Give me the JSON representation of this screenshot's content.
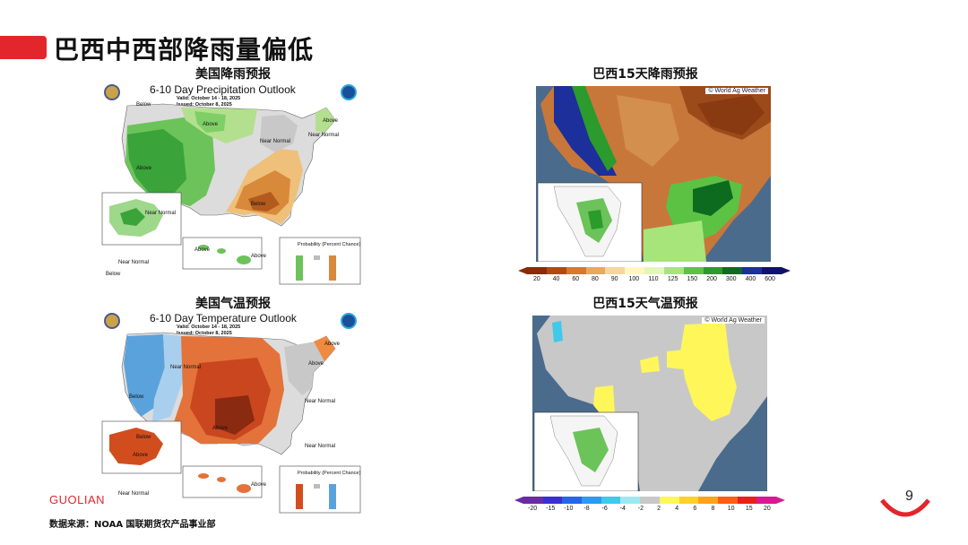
{
  "page": {
    "title": "巴西中西部降雨量偏低",
    "brand": "GUOLIAN",
    "source": "数据来源：NOAA 国联期货农产品事业部",
    "page_number": "9"
  },
  "us_precip": {
    "subtitle": "美国降雨预报",
    "map_title": "6-10 Day Precipitation Outlook",
    "valid": "Valid:   October 14 - 18, 2025",
    "issued": "Issued:   October 8, 2025",
    "labels": [
      "Above",
      "Below",
      "Near Normal",
      "Above",
      "Below",
      "Near Normal",
      "Near Normal",
      "Above",
      "Above",
      "Above",
      "Near Normal",
      "Below"
    ],
    "legend_title": "Probability (Percent Chance)"
  },
  "us_temp": {
    "subtitle": "美国气温预报",
    "map_title": "6-10 Day Temperature Outlook",
    "valid": "Valid:   October 14 - 18, 2025",
    "issued": "Issued:   October 8, 2025",
    "labels": [
      "Below",
      "Near Normal",
      "Above",
      "Near Normal",
      "Above",
      "Below",
      "Near Normal",
      "Above",
      "Near Normal",
      "Above",
      "Above"
    ],
    "legend_title": "Probability (Percent Chance)"
  },
  "br_precip": {
    "subtitle": "巴西15天降雨预报",
    "credit": "© World Ag Weather",
    "scale_ticks": [
      "20",
      "40",
      "60",
      "80",
      "90",
      "100",
      "110",
      "125",
      "150",
      "200",
      "300",
      "400",
      "600"
    ],
    "scale_colors": [
      "#8b2a06",
      "#b5480d",
      "#d9772a",
      "#eaa85a",
      "#f3d79c",
      "#fff6c2",
      "#e3f7b5",
      "#a7e57a",
      "#5cc244",
      "#2a9b2c",
      "#0d6b20",
      "#1c2f9a",
      "#10106e"
    ]
  },
  "br_temp": {
    "subtitle": "巴西15天气温预报",
    "credit": "© World Ag Weather",
    "scale_ticks": [
      "-20",
      "-15",
      "-10",
      "-8",
      "-6",
      "-4",
      "-2",
      "2",
      "4",
      "6",
      "8",
      "10",
      "15",
      "20"
    ],
    "scale_colors": [
      "#6a2ca4",
      "#3a2fd0",
      "#2765e8",
      "#2b9bf0",
      "#3fc9ea",
      "#9de9f2",
      "#c8c8c8",
      "#fff65a",
      "#ffd12a",
      "#ffa21c",
      "#ff5e14",
      "#e8201c",
      "#d61a90"
    ]
  }
}
